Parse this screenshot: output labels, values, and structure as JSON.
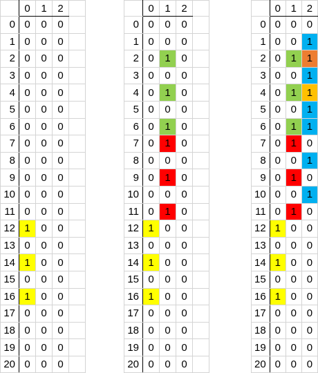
{
  "column_headers": [
    "0",
    "1",
    "2"
  ],
  "row_headers": [
    "0",
    "1",
    "2",
    "3",
    "4",
    "5",
    "6",
    "7",
    "8",
    "9",
    "10",
    "11",
    "12",
    "13",
    "14",
    "15",
    "16",
    "17",
    "18",
    "19",
    "20"
  ],
  "colors": {
    "yellow": "#FFFF00",
    "green": "#92D050",
    "red": "#FF0000",
    "blue": "#00B0F0",
    "orange": "#ED7D31",
    "gold": "#FFC000"
  },
  "grids": [
    {
      "cells": [
        [
          "0",
          "0",
          "0"
        ],
        [
          "0",
          "0",
          "0"
        ],
        [
          "0",
          "0",
          "0"
        ],
        [
          "0",
          "0",
          "0"
        ],
        [
          "0",
          "0",
          "0"
        ],
        [
          "0",
          "0",
          "0"
        ],
        [
          "0",
          "0",
          "0"
        ],
        [
          "0",
          "0",
          "0"
        ],
        [
          "0",
          "0",
          "0"
        ],
        [
          "0",
          "0",
          "0"
        ],
        [
          "0",
          "0",
          "0"
        ],
        [
          "0",
          "0",
          "0"
        ],
        [
          "1",
          "0",
          "0"
        ],
        [
          "0",
          "0",
          "0"
        ],
        [
          "1",
          "0",
          "0"
        ],
        [
          "0",
          "0",
          "0"
        ],
        [
          "1",
          "0",
          "0"
        ],
        [
          "0",
          "0",
          "0"
        ],
        [
          "0",
          "0",
          "0"
        ],
        [
          "0",
          "0",
          "0"
        ],
        [
          "0",
          "0",
          "0"
        ]
      ],
      "fills": [
        [
          null,
          null,
          null
        ],
        [
          null,
          null,
          null
        ],
        [
          null,
          null,
          null
        ],
        [
          null,
          null,
          null
        ],
        [
          null,
          null,
          null
        ],
        [
          null,
          null,
          null
        ],
        [
          null,
          null,
          null
        ],
        [
          null,
          null,
          null
        ],
        [
          null,
          null,
          null
        ],
        [
          null,
          null,
          null
        ],
        [
          null,
          null,
          null
        ],
        [
          null,
          null,
          null
        ],
        [
          "yellow",
          null,
          null
        ],
        [
          null,
          null,
          null
        ],
        [
          "yellow",
          null,
          null
        ],
        [
          null,
          null,
          null
        ],
        [
          "yellow",
          null,
          null
        ],
        [
          null,
          null,
          null
        ],
        [
          null,
          null,
          null
        ],
        [
          null,
          null,
          null
        ],
        [
          null,
          null,
          null
        ]
      ]
    },
    {
      "cells": [
        [
          "0",
          "0",
          "0"
        ],
        [
          "0",
          "0",
          "0"
        ],
        [
          "0",
          "1",
          "0"
        ],
        [
          "0",
          "0",
          "0"
        ],
        [
          "0",
          "1",
          "0"
        ],
        [
          "0",
          "0",
          "0"
        ],
        [
          "0",
          "1",
          "0"
        ],
        [
          "0",
          "1",
          "0"
        ],
        [
          "0",
          "0",
          "0"
        ],
        [
          "0",
          "1",
          "0"
        ],
        [
          "0",
          "0",
          "0"
        ],
        [
          "0",
          "1",
          "0"
        ],
        [
          "1",
          "0",
          "0"
        ],
        [
          "0",
          "0",
          "0"
        ],
        [
          "1",
          "0",
          "0"
        ],
        [
          "0",
          "0",
          "0"
        ],
        [
          "1",
          "0",
          "0"
        ],
        [
          "0",
          "0",
          "0"
        ],
        [
          "0",
          "0",
          "0"
        ],
        [
          "0",
          "0",
          "0"
        ],
        [
          "0",
          "0",
          "0"
        ]
      ],
      "fills": [
        [
          null,
          null,
          null
        ],
        [
          null,
          null,
          null
        ],
        [
          null,
          "green",
          null
        ],
        [
          null,
          null,
          null
        ],
        [
          null,
          "green",
          null
        ],
        [
          null,
          null,
          null
        ],
        [
          null,
          "green",
          null
        ],
        [
          null,
          "red",
          null
        ],
        [
          null,
          null,
          null
        ],
        [
          null,
          "red",
          null
        ],
        [
          null,
          null,
          null
        ],
        [
          null,
          "red",
          null
        ],
        [
          "yellow",
          null,
          null
        ],
        [
          null,
          null,
          null
        ],
        [
          "yellow",
          null,
          null
        ],
        [
          null,
          null,
          null
        ],
        [
          "yellow",
          null,
          null
        ],
        [
          null,
          null,
          null
        ],
        [
          null,
          null,
          null
        ],
        [
          null,
          null,
          null
        ],
        [
          null,
          null,
          null
        ]
      ]
    },
    {
      "cells": [
        [
          "0",
          "0",
          "0"
        ],
        [
          "0",
          "0",
          "1"
        ],
        [
          "0",
          "1",
          "1"
        ],
        [
          "0",
          "0",
          "1"
        ],
        [
          "0",
          "1",
          "1"
        ],
        [
          "0",
          "0",
          "1"
        ],
        [
          "0",
          "1",
          "1"
        ],
        [
          "0",
          "1",
          "0"
        ],
        [
          "0",
          "0",
          "1"
        ],
        [
          "0",
          "1",
          "0"
        ],
        [
          "0",
          "0",
          "1"
        ],
        [
          "0",
          "1",
          "0"
        ],
        [
          "1",
          "0",
          "0"
        ],
        [
          "0",
          "0",
          "0"
        ],
        [
          "1",
          "0",
          "0"
        ],
        [
          "0",
          "0",
          "0"
        ],
        [
          "1",
          "0",
          "0"
        ],
        [
          "0",
          "0",
          "0"
        ],
        [
          "0",
          "0",
          "0"
        ],
        [
          "0",
          "0",
          "0"
        ],
        [
          "0",
          "0",
          "0"
        ]
      ],
      "fills": [
        [
          null,
          null,
          null
        ],
        [
          null,
          null,
          "blue"
        ],
        [
          null,
          "green",
          "orange"
        ],
        [
          null,
          null,
          "blue"
        ],
        [
          null,
          "green",
          "gold"
        ],
        [
          null,
          null,
          "blue"
        ],
        [
          null,
          "green",
          "blue"
        ],
        [
          null,
          "red",
          null
        ],
        [
          null,
          null,
          "blue"
        ],
        [
          null,
          "red",
          null
        ],
        [
          null,
          null,
          "blue"
        ],
        [
          null,
          "red",
          null
        ],
        [
          "yellow",
          null,
          null
        ],
        [
          null,
          null,
          null
        ],
        [
          "yellow",
          null,
          null
        ],
        [
          null,
          null,
          null
        ],
        [
          "yellow",
          null,
          null
        ],
        [
          null,
          null,
          null
        ],
        [
          null,
          null,
          null
        ],
        [
          null,
          null,
          null
        ],
        [
          null,
          null,
          null
        ]
      ]
    }
  ]
}
